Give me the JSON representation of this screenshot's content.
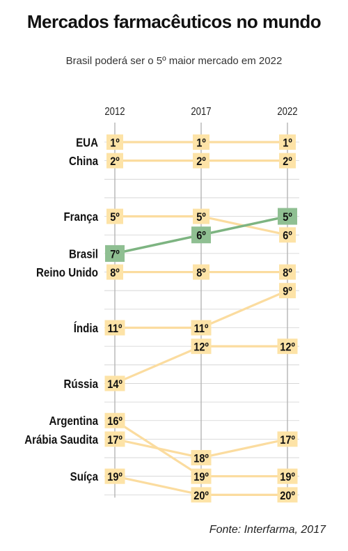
{
  "title": "Mercados farmacêuticos no mundo",
  "subtitle": "Brasil poderá ser o 5º maior mercado em 2022",
  "source": "Fonte: Interfarma, 2017",
  "colors": {
    "box": "#fde3a7",
    "line": "#fbdc9f",
    "highlight_box": "#8fbf92",
    "highlight_line": "#7db481",
    "grid": "#d0d0d0",
    "axis": "#b5b5b5"
  },
  "chart_data": {
    "type": "line",
    "subtype": "bump",
    "title": "Mercados farmacêuticos no mundo",
    "subtitle": "Brasil poderá ser o 5º maior mercado em 2022",
    "x": [
      "2012",
      "2017",
      "2022"
    ],
    "y_axis": "rank",
    "ylim": [
      1,
      20
    ],
    "grid": true,
    "highlight": "Brasil",
    "series": [
      {
        "name": "EUA",
        "ranks": [
          1,
          1,
          1
        ],
        "labels": [
          "1º",
          "1º",
          "1º"
        ]
      },
      {
        "name": "China",
        "ranks": [
          2,
          2,
          2
        ],
        "labels": [
          "2º",
          "2º",
          "2º"
        ]
      },
      {
        "name": "França",
        "ranks": [
          5,
          5,
          6
        ],
        "labels": [
          "5º",
          "5º",
          "6º"
        ]
      },
      {
        "name": "Brasil",
        "ranks": [
          7,
          6,
          5
        ],
        "labels": [
          "7º",
          "6º",
          "5º"
        ]
      },
      {
        "name": "Reino Unido",
        "ranks": [
          8,
          8,
          8
        ],
        "labels": [
          "8º",
          "8º",
          "8º"
        ]
      },
      {
        "name": "Índia",
        "ranks": [
          11,
          11,
          9
        ],
        "labels": [
          "11º",
          "11º",
          "9º"
        ]
      },
      {
        "name": "Rússia",
        "ranks": [
          14,
          12,
          12
        ],
        "labels": [
          "14º",
          "12º",
          "12º"
        ]
      },
      {
        "name": "Argentina",
        "ranks": [
          16,
          19,
          19
        ],
        "labels": [
          "16º",
          "19º",
          "19º"
        ]
      },
      {
        "name": "Arábia Saudita",
        "ranks": [
          17,
          18,
          17
        ],
        "labels": [
          "17º",
          "18º",
          "17º"
        ]
      },
      {
        "name": "Suíça",
        "ranks": [
          19,
          20,
          20
        ],
        "labels": [
          "19º",
          "20º",
          "20º"
        ]
      }
    ]
  }
}
